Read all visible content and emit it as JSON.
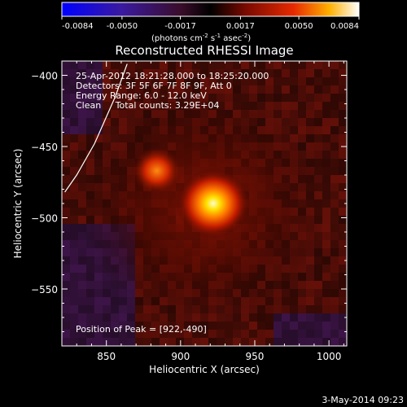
{
  "colorbar": {
    "ticks": [
      "-0.0084",
      "-0.0050",
      "-0.0017",
      "0.0017",
      "0.0050",
      "0.0084"
    ],
    "unit_label": "(photons cm",
    "unit_sup1": "-2",
    "unit_mid": " s",
    "unit_sup2": "-1",
    "unit_end": " asec",
    "unit_sup3": "-2",
    "unit_close": ")"
  },
  "chart_data": {
    "type": "heatmap",
    "title": "Reconstructed RHESSI Image",
    "xlabel": "Heliocentric X (arcsec)",
    "ylabel": "Heliocentric Y (arcsec)",
    "xlim": [
      820,
      1012
    ],
    "ylim": [
      -590,
      -390
    ],
    "x_ticks": [
      850,
      900,
      950,
      1000
    ],
    "y_ticks": [
      -550,
      -500,
      -450,
      -400
    ],
    "colorbar_range": [
      -0.0084,
      0.0084
    ],
    "sources": [
      {
        "x": 922,
        "y": -490,
        "relative_intensity": 1.0
      },
      {
        "x": 884,
        "y": -467,
        "relative_intensity": 0.55
      }
    ],
    "limb_curve": [
      [
        822,
        -482
      ],
      [
        830,
        -470
      ],
      [
        842,
        -448
      ],
      [
        856,
        -415
      ],
      [
        864,
        -392
      ]
    ],
    "info_lines": [
      "25-Apr-2012 18:21:28.000 to 18:25:20.000",
      "Detectors: 3F 5F 6F 7F 8F 9F, Att 0",
      "Energy Range: 6.0 - 12.0 keV",
      "Clean     Total counts: 3.29E+04"
    ],
    "peak_label": "Position of Peak = [922,-490]",
    "peak": [
      922,
      -490
    ]
  },
  "footer": {
    "date": "3-May-2014 09:23"
  }
}
